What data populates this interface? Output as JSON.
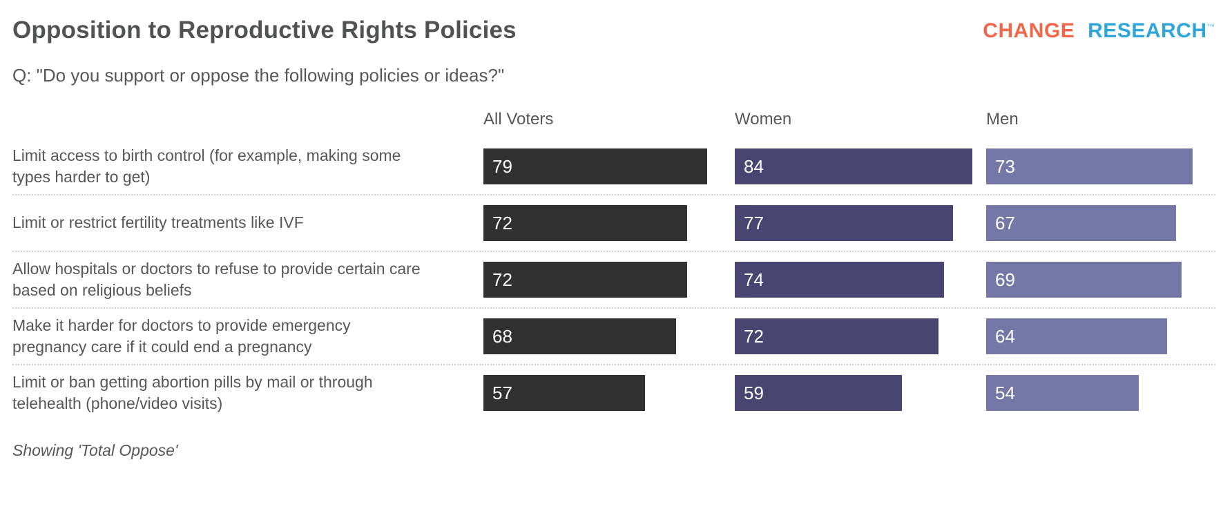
{
  "title": "Opposition to Reproductive Rights Policies",
  "subtitle": "Q: \"Do you support or oppose the following policies or ideas?\"",
  "logo": {
    "part1": "CHANGE",
    "part2": "RESEARCH",
    "tm": "™",
    "part1_color": "#f2674a",
    "part2_color": "#2ea6da"
  },
  "footnote": "Showing 'Total Oppose'",
  "chart_data": {
    "type": "bar",
    "orientation": "horizontal",
    "title": "Opposition to Reproductive Rights Policies",
    "question": "Q: \"Do you support or oppose the following policies or ideas?\"",
    "note": "Showing 'Total Oppose'",
    "value_labels": "inside-left, white",
    "xlim": [
      0,
      100
    ],
    "grid": false,
    "legend_position": "column headers above each bar group",
    "categories": [
      "Limit access to birth control (for example, making some types harder to get)",
      "Limit or restrict fertility treatments like IVF",
      "Allow hospitals or doctors to refuse to provide certain care based on religious beliefs",
      "Make it harder for doctors to provide emergency pregnancy care if it could end a pregnancy",
      "Limit or ban getting abortion pills by mail or through telehealth (phone/video visits)"
    ],
    "series": [
      {
        "name": "All Voters",
        "color": "#313132",
        "values": [
          79,
          72,
          72,
          68,
          57
        ]
      },
      {
        "name": "Women",
        "color": "#464670",
        "values": [
          84,
          77,
          74,
          72,
          59
        ]
      },
      {
        "name": "Men",
        "color": "#7577a7",
        "values": [
          73,
          67,
          69,
          64,
          54
        ]
      }
    ]
  }
}
